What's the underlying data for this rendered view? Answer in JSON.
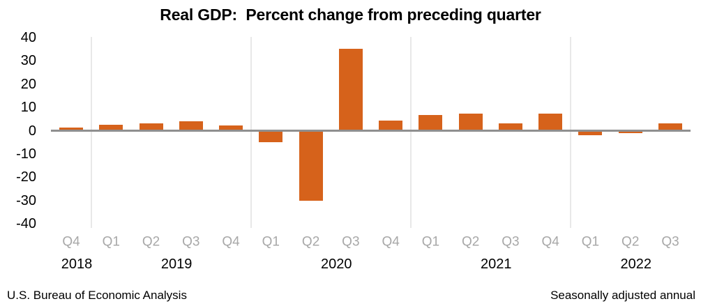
{
  "title": "Real GDP:  Percent change from preceding quarter",
  "footer": {
    "source": "U.S. Bureau of Economic Analysis",
    "note": "Seasonally adjusted annual"
  },
  "colors": {
    "bar": "#D6621B",
    "zero_line": "#8F8F8F",
    "year_divider": "#E8E8E8",
    "quarter_label": "#A8A8A8",
    "year_label": "#000000",
    "tick_label": "#000000"
  },
  "chart_data": {
    "type": "bar",
    "title": "Real GDP:  Percent change from preceding quarter",
    "xlabel": "",
    "ylabel": "",
    "ylim": [
      -40,
      40
    ],
    "yticks": [
      40,
      30,
      20,
      10,
      0,
      -10,
      -20,
      -30,
      -40
    ],
    "grid": "vertical dividers between years only",
    "legend_position": "none",
    "points": [
      {
        "year": "2018",
        "quarter": "Q4",
        "value": 0.9
      },
      {
        "year": "2019",
        "quarter": "Q1",
        "value": 2.2
      },
      {
        "year": "2019",
        "quarter": "Q2",
        "value": 2.7
      },
      {
        "year": "2019",
        "quarter": "Q3",
        "value": 3.6
      },
      {
        "year": "2019",
        "quarter": "Q4",
        "value": 1.8
      },
      {
        "year": "2020",
        "quarter": "Q1",
        "value": -4.6
      },
      {
        "year": "2020",
        "quarter": "Q2",
        "value": -29.9
      },
      {
        "year": "2020",
        "quarter": "Q3",
        "value": 35.3
      },
      {
        "year": "2020",
        "quarter": "Q4",
        "value": 3.9
      },
      {
        "year": "2021",
        "quarter": "Q1",
        "value": 6.3
      },
      {
        "year": "2021",
        "quarter": "Q2",
        "value": 7.0
      },
      {
        "year": "2021",
        "quarter": "Q3",
        "value": 2.7
      },
      {
        "year": "2021",
        "quarter": "Q4",
        "value": 7.0
      },
      {
        "year": "2022",
        "quarter": "Q1",
        "value": -1.6
      },
      {
        "year": "2022",
        "quarter": "Q2",
        "value": -0.6
      },
      {
        "year": "2022",
        "quarter": "Q3",
        "value": 2.6
      }
    ]
  }
}
